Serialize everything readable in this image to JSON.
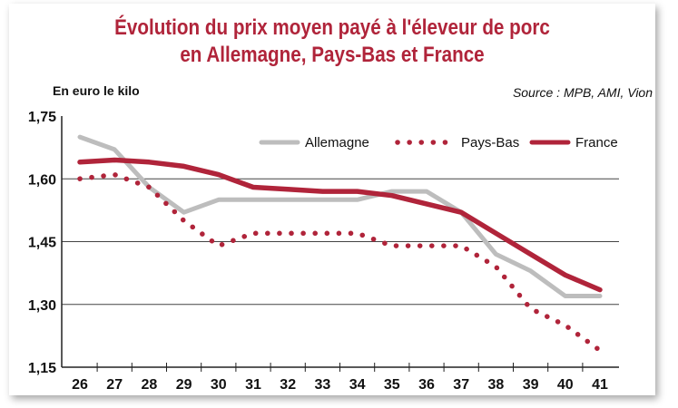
{
  "chart_data": {
    "type": "line",
    "title_line1": "Évolution du prix moyen payé à l'éleveur de porc",
    "title_line2": "en Allemagne, Pays-Bas et France",
    "ylabel": "En euro le kilo",
    "source": "Source : MPB, AMI, Vion",
    "categories": [
      "26",
      "27",
      "28",
      "29",
      "30",
      "31",
      "32",
      "33",
      "34",
      "35",
      "36",
      "37",
      "38",
      "39",
      "40",
      "41"
    ],
    "y_ticks": [
      "1,75",
      "1,60",
      "1,45",
      "1,30",
      "1,15"
    ],
    "y_tick_values": [
      1.75,
      1.6,
      1.45,
      1.3,
      1.15
    ],
    "ylim": [
      1.15,
      1.75
    ],
    "grid": true,
    "legend_position": "top-right",
    "series": [
      {
        "name": "Allemagne",
        "style": "solid",
        "color": "#bdbdbd",
        "values": [
          1.7,
          1.67,
          1.58,
          1.52,
          1.55,
          1.55,
          1.55,
          1.55,
          1.55,
          1.57,
          1.57,
          1.52,
          1.42,
          1.38,
          1.32,
          1.32
        ]
      },
      {
        "name": "Pays-Bas",
        "style": "dotted",
        "color": "#b0243a",
        "values": [
          1.6,
          1.61,
          1.58,
          1.5,
          1.44,
          1.47,
          1.47,
          1.47,
          1.47,
          1.44,
          1.44,
          1.44,
          1.39,
          1.29,
          1.25,
          1.19
        ]
      },
      {
        "name": "France",
        "style": "solid",
        "color": "#b0243a",
        "values": [
          1.64,
          1.645,
          1.64,
          1.63,
          1.61,
          1.58,
          1.575,
          1.57,
          1.57,
          1.56,
          1.54,
          1.52,
          1.47,
          1.42,
          1.37,
          1.335
        ]
      }
    ]
  }
}
